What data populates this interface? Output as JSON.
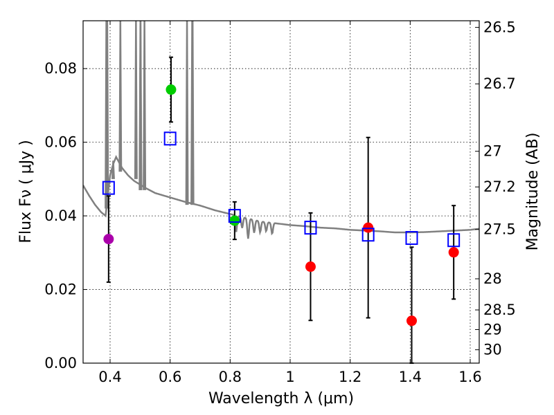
{
  "chart_data": {
    "type": "scatter",
    "title": "",
    "xlabel": "Wavelength  λ (μm)",
    "ylabel": "Flux  Fν  ( μJy )",
    "ylabel_right": "Magnitude (AB)",
    "xlim": [
      0.31,
      1.63
    ],
    "ylim": [
      0.0,
      0.093
    ],
    "grid": true,
    "x_ticks": [
      {
        "value": 0.4,
        "label": "0.4"
      },
      {
        "value": 0.6,
        "label": "0.6"
      },
      {
        "value": 0.8,
        "label": "0.8"
      },
      {
        "value": 1.0,
        "label": "1"
      },
      {
        "value": 1.2,
        "label": "1.2"
      },
      {
        "value": 1.4,
        "label": "1.4"
      },
      {
        "value": 1.6,
        "label": "1.6"
      }
    ],
    "y_ticks": [
      {
        "value": 0.0,
        "label": "0.00"
      },
      {
        "value": 0.02,
        "label": "0.02"
      },
      {
        "value": 0.04,
        "label": "0.04"
      },
      {
        "value": 0.06,
        "label": "0.06"
      },
      {
        "value": 0.08,
        "label": "0.08"
      }
    ],
    "magnitude_ticks": [
      {
        "value": 26.5,
        "label": "26.5"
      },
      {
        "value": 26.7,
        "label": "26.7"
      },
      {
        "value": 27.0,
        "label": "27"
      },
      {
        "value": 27.2,
        "label": "27.2"
      },
      {
        "value": 27.5,
        "label": "27.5"
      },
      {
        "value": 28.0,
        "label": "28"
      },
      {
        "value": 28.5,
        "label": "28.5"
      },
      {
        "value": 29.0,
        "label": "29"
      },
      {
        "value": 30.0,
        "label": "30"
      }
    ],
    "colors": {
      "model_line": "#808080",
      "model_points": "#0000ff",
      "purple": "#aa00aa",
      "green": "#00cc00",
      "red": "#ff0000",
      "errorbar": "#000000"
    },
    "series": [
      {
        "name": "observed_purple",
        "color": "#aa00aa",
        "marker": "circle",
        "points": [
          {
            "x": 0.395,
            "y": 0.0337,
            "err_low": 0.0117,
            "err_high": 0.0117
          }
        ]
      },
      {
        "name": "observed_green",
        "color": "#00cc00",
        "marker": "circle",
        "points": [
          {
            "x": 0.603,
            "y": 0.0743,
            "err_low": 0.0088,
            "err_high": 0.0088
          },
          {
            "x": 0.815,
            "y": 0.0387,
            "err_low": 0.0051,
            "err_high": 0.0051
          }
        ]
      },
      {
        "name": "observed_red",
        "color": "#ff0000",
        "marker": "circle",
        "points": [
          {
            "x": 1.068,
            "y": 0.0262,
            "err_low": 0.0146,
            "err_high": 0.0146
          },
          {
            "x": 1.26,
            "y": 0.0368,
            "err_low": 0.0245,
            "err_high": 0.0245
          },
          {
            "x": 1.405,
            "y": 0.0115,
            "err_low": 0.02,
            "err_high": 0.02
          },
          {
            "x": 1.545,
            "y": 0.0301,
            "err_low": 0.0127,
            "err_high": 0.0127
          }
        ]
      },
      {
        "name": "model_photometry",
        "color": "#0000ff",
        "marker": "open-square",
        "points": [
          {
            "x": 0.395,
            "y": 0.0476
          },
          {
            "x": 0.6,
            "y": 0.061
          },
          {
            "x": 0.815,
            "y": 0.04
          },
          {
            "x": 1.068,
            "y": 0.0368
          },
          {
            "x": 1.26,
            "y": 0.0349
          },
          {
            "x": 1.405,
            "y": 0.034
          },
          {
            "x": 1.545,
            "y": 0.0334
          }
        ]
      }
    ],
    "model_spectrum": {
      "name": "model_SED",
      "color": "#808080",
      "x": [
        0.31,
        0.33,
        0.35,
        0.37,
        0.385,
        0.39,
        0.4,
        0.41,
        0.42,
        0.44,
        0.46,
        0.48,
        0.5,
        0.52,
        0.55,
        0.6,
        0.65,
        0.7,
        0.75,
        0.8,
        0.85,
        0.9,
        0.95,
        1.0,
        1.05,
        1.1,
        1.15,
        1.2,
        1.25,
        1.3,
        1.35,
        1.4,
        1.45,
        1.5,
        1.55,
        1.6,
        1.63
      ],
      "y": [
        0.0483,
        0.0455,
        0.043,
        0.041,
        0.04,
        0.044,
        0.051,
        0.054,
        0.056,
        0.053,
        0.051,
        0.0495,
        0.0485,
        0.0475,
        0.0462,
        0.045,
        0.0438,
        0.0428,
        0.0415,
        0.0405,
        0.0395,
        0.0385,
        0.038,
        0.0375,
        0.0372,
        0.0368,
        0.0366,
        0.0362,
        0.036,
        0.0358,
        0.0355,
        0.0355,
        0.0356,
        0.0358,
        0.036,
        0.0362,
        0.0365
      ]
    },
    "emission_lines": [
      {
        "x": 0.3875,
        "top": 0.093,
        "base": 0.042
      },
      {
        "x": 0.3905,
        "top": 0.093,
        "base": 0.044
      },
      {
        "x": 0.4103,
        "top": 0.055,
        "base": 0.05
      },
      {
        "x": 0.4342,
        "top": 0.093,
        "base": 0.052
      },
      {
        "x": 0.4862,
        "top": 0.093,
        "base": 0.05
      },
      {
        "x": 0.501,
        "top": 0.093,
        "base": 0.047
      },
      {
        "x": 0.5015,
        "top": 0.093,
        "base": 0.047
      },
      {
        "x": 0.5145,
        "top": 0.093,
        "base": 0.047
      },
      {
        "x": 0.6563,
        "top": 0.093,
        "base": 0.043
      },
      {
        "x": 0.6735,
        "top": 0.093,
        "base": 0.043
      },
      {
        "x": 0.675,
        "top": 0.093,
        "base": 0.043
      }
    ],
    "absorption_features": [
      {
        "x": 0.82,
        "depth": 0.0045
      },
      {
        "x": 0.84,
        "depth": 0.003
      },
      {
        "x": 0.86,
        "depth": 0.0055
      },
      {
        "x": 0.88,
        "depth": 0.0035
      },
      {
        "x": 0.9,
        "depth": 0.003
      },
      {
        "x": 0.92,
        "depth": 0.0025
      },
      {
        "x": 0.94,
        "depth": 0.003
      }
    ]
  }
}
